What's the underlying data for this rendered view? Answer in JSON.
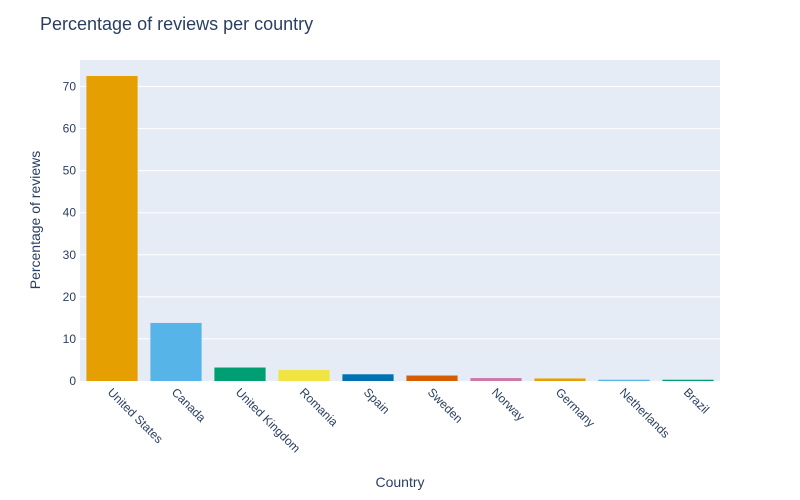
{
  "chart_data": {
    "type": "bar",
    "title": "Percentage of reviews per country",
    "xlabel": "Country",
    "ylabel": "Percentage of reviews",
    "categories": [
      "United States",
      "Canada",
      "United Kingdom",
      "Romania",
      "Spain",
      "Sweden",
      "Norway",
      "Germany",
      "Netherlands",
      "Brazil"
    ],
    "values": [
      72.5,
      13.8,
      3.2,
      2.6,
      1.6,
      1.3,
      0.7,
      0.6,
      0.3,
      0.3
    ],
    "colors": [
      "#E69F00",
      "#56B4E9",
      "#009E73",
      "#F0E442",
      "#0072B2",
      "#D55E00",
      "#CC79A7",
      "#E69F00",
      "#56B4E9",
      "#009E73"
    ],
    "ylim": [
      0,
      76.3
    ],
    "yticks": [
      0,
      10,
      20,
      30,
      40,
      50,
      60,
      70
    ],
    "grid": true,
    "plot_bgcolor": "#E5ECF6",
    "legend": "none"
  }
}
